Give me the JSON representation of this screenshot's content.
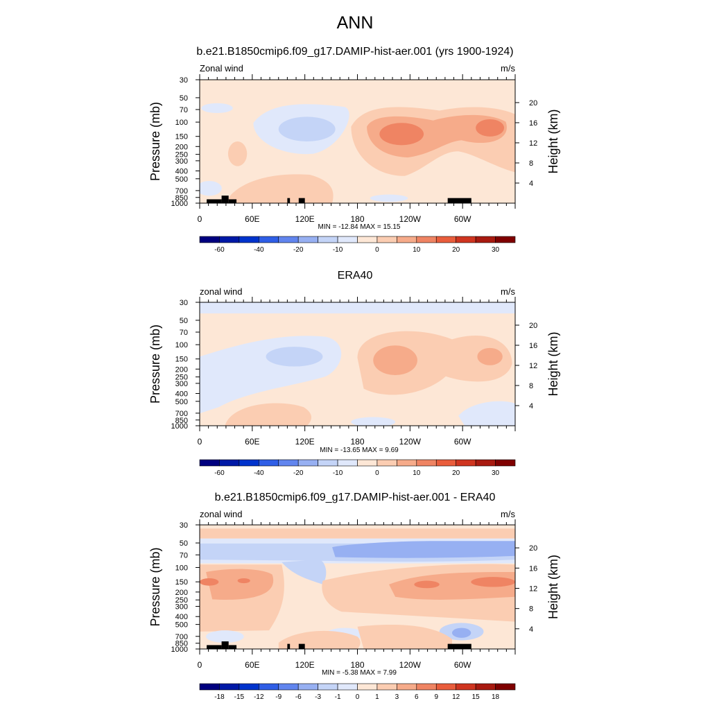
{
  "page": {
    "title": "ANN"
  },
  "colors": {
    "levels_full": [
      "#00007f",
      "#0019a6",
      "#0033cc",
      "#2f5ee6",
      "#6185ee",
      "#97b0f2",
      "#c4d4f7",
      "#e0e8fb",
      "#fde7d6",
      "#fbcdb2",
      "#f6ab8a",
      "#ef8463",
      "#e95d3c",
      "#cf3520",
      "#a81a10",
      "#7f0000"
    ]
  },
  "chart_data": [
    {
      "type": "contour",
      "panel": "top",
      "title": "b.e21.B1850cmip6.f09_g17.DAMIP-hist-aer.001 (yrs 1900-1924)",
      "left_label": "Zonal wind",
      "right_label": "m/s",
      "ylabel": "Pressure (mb)",
      "ylabel_right": "Height (km)",
      "x_ticks": [
        "0",
        "60E",
        "120E",
        "180",
        "120W",
        "60W"
      ],
      "y_ticks": [
        "30",
        "50",
        "70",
        "100",
        "150",
        "200",
        "250",
        "300",
        "400",
        "500",
        "700",
        "850",
        "1000"
      ],
      "y_ticks_right": [
        "20",
        "16",
        "12",
        "8",
        "4"
      ],
      "stats": "MIN = -12.84  MAX =  15.15",
      "colorbar_labels": [
        "-60",
        "-40",
        "-20",
        "-10",
        "0",
        "10",
        "20",
        "30"
      ],
      "min": -12.84,
      "max": 15.15
    },
    {
      "type": "contour",
      "panel": "middle",
      "title": "ERA40",
      "left_label": "zonal wind",
      "right_label": "m/s",
      "ylabel": "Pressure (mb)",
      "ylabel_right": "Height (km)",
      "x_ticks": [
        "0",
        "60E",
        "120E",
        "180",
        "120W",
        "60W"
      ],
      "y_ticks": [
        "30",
        "50",
        "70",
        "100",
        "150",
        "200",
        "250",
        "300",
        "400",
        "500",
        "700",
        "850",
        "1000"
      ],
      "y_ticks_right": [
        "20",
        "16",
        "12",
        "8",
        "4"
      ],
      "stats": "MIN = -13.65  MAX =   9.69",
      "colorbar_labels": [
        "-60",
        "-40",
        "-20",
        "-10",
        "0",
        "10",
        "20",
        "30"
      ],
      "min": -13.65,
      "max": 9.69
    },
    {
      "type": "contour",
      "panel": "bottom",
      "title": "b.e21.B1850cmip6.f09_g17.DAMIP-hist-aer.001 - ERA40",
      "left_label": "zonal wind",
      "right_label": "m/s",
      "ylabel": "Pressure (mb)",
      "ylabel_right": "Height (km)",
      "x_ticks": [
        "0",
        "60E",
        "120E",
        "180",
        "120W",
        "60W"
      ],
      "y_ticks": [
        "30",
        "50",
        "70",
        "100",
        "150",
        "200",
        "250",
        "300",
        "400",
        "500",
        "700",
        "850",
        "1000"
      ],
      "y_ticks_right": [
        "20",
        "16",
        "12",
        "8",
        "4"
      ],
      "stats": "MIN =  -5.38  MAX =   7.99",
      "colorbar_labels": [
        "-18",
        "-15",
        "-12",
        "-9",
        "-6",
        "-3",
        "-1",
        "0",
        "1",
        "3",
        "6",
        "9",
        "12",
        "15",
        "18"
      ],
      "min": -5.38,
      "max": 7.99
    }
  ]
}
